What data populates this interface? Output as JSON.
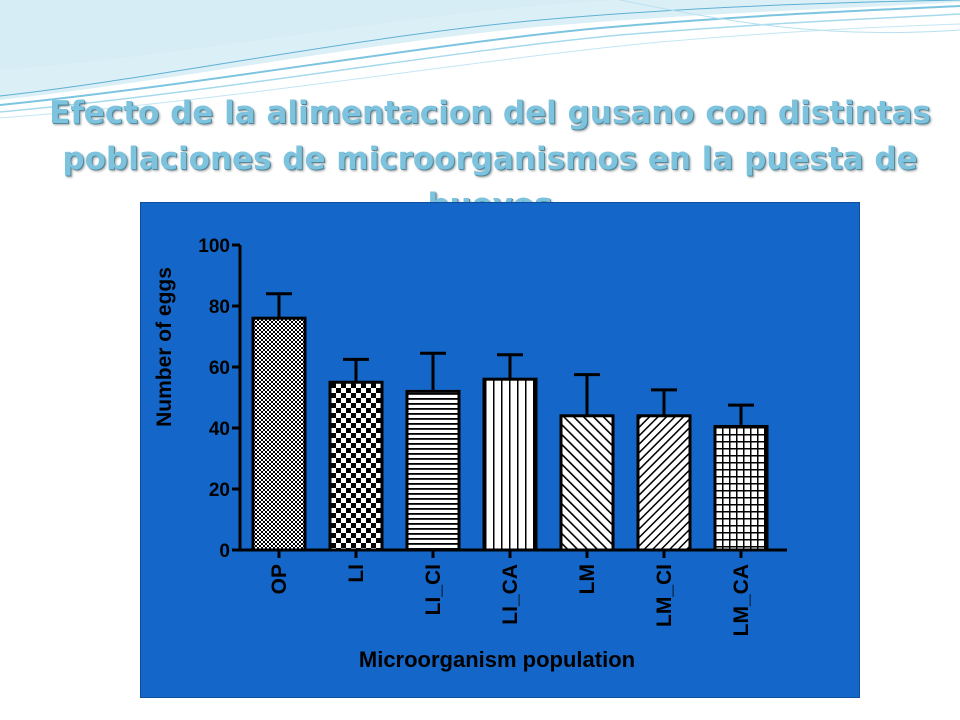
{
  "slide": {
    "title_line1": "Efecto de la alimentacion del gusano con distintas",
    "title_line2": "poblaciones de microorganismos en la puesta de huevos"
  },
  "colors": {
    "panel_background": "#1467c8",
    "bar_fill": "#ffffff",
    "bar_pattern_ink": "#000000",
    "title_color": "#7ec3de"
  },
  "chart_data": {
    "type": "bar",
    "title": "",
    "xlabel": "Microorganism population",
    "ylabel": "Number of eggs",
    "categories": [
      "OP",
      "LI",
      "LI_CI",
      "LI_CA",
      "LM",
      "LM_CI",
      "LM_CA"
    ],
    "values": [
      76,
      55,
      52,
      56,
      44,
      44,
      40.5
    ],
    "error_upper": [
      84,
      62.5,
      64.5,
      64,
      57.5,
      52.5,
      47.5
    ],
    "patterns": [
      "dense-checker",
      "checkerboard",
      "horizontal-lines",
      "vertical-lines",
      "diagonal-lines",
      "anti-diagonal-lines",
      "grid"
    ],
    "ylim": [
      0,
      100
    ],
    "yticks": [
      0,
      20,
      40,
      60,
      80,
      100
    ],
    "grid": false,
    "legend": "none"
  }
}
